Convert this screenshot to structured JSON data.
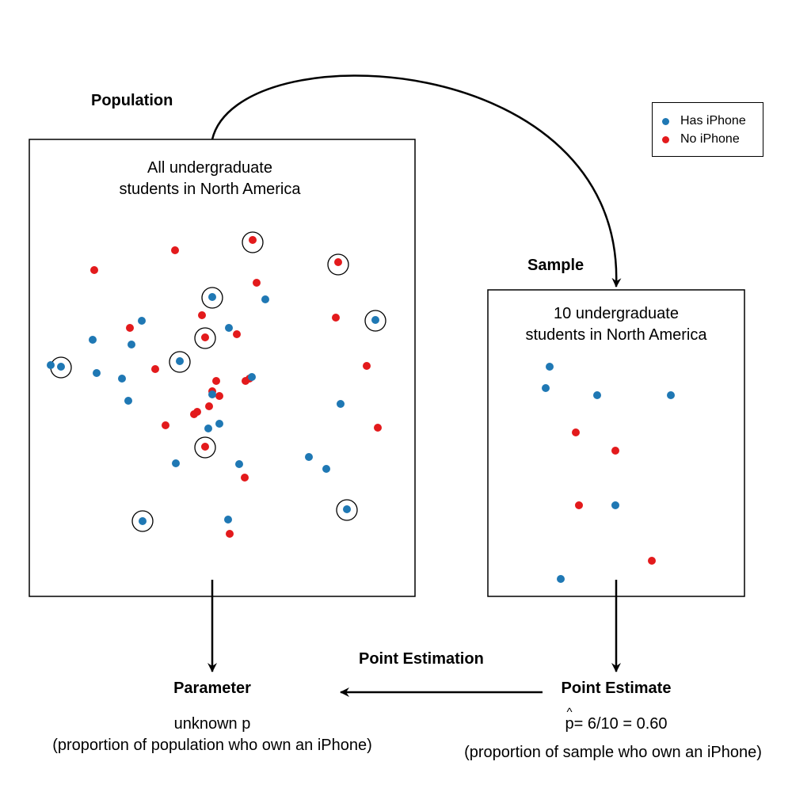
{
  "colors": {
    "has_iphone": "#1f78b4",
    "no_iphone": "#e31a1c",
    "line": "#000000"
  },
  "labels": {
    "population": "Population",
    "sample": "Sample",
    "population_desc_1": "All undergraduate",
    "population_desc_2": "students in North America",
    "sample_desc_1": "10 undergraduate",
    "sample_desc_2": "students in North America",
    "point_estimation": "Point Estimation",
    "parameter": "Parameter",
    "parameter_value": "unknown p",
    "parameter_desc": "(proportion of population who own an iPhone)",
    "point_estimate": "Point Estimate",
    "estimate_hat": "^",
    "estimate_p": "p",
    "estimate_value": "= 6/10 = 0.60",
    "estimate_desc": "(proportion of sample who own an iPhone)"
  },
  "legend": {
    "items": [
      {
        "label": "Has iPhone",
        "color": "#1f78b4"
      },
      {
        "label": "No iPhone",
        "color": "#e31a1c"
      }
    ]
  }
}
